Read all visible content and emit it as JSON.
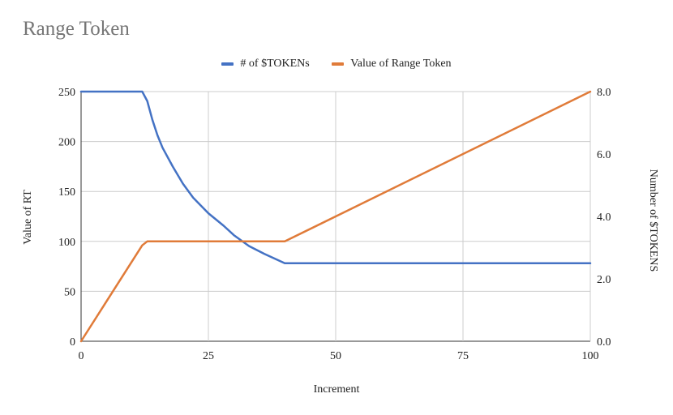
{
  "chart_data": {
    "type": "line",
    "title": "Range Token",
    "xlabel": "Increment",
    "ylabel": "Value of RT",
    "y2label": "Number of $TOKENS",
    "xlim": [
      0,
      100
    ],
    "ylim": [
      0,
      250
    ],
    "y2lim": [
      0,
      8
    ],
    "x_ticks": [
      "0",
      "25",
      "50",
      "75",
      "100"
    ],
    "y_ticks": [
      "0",
      "50",
      "100",
      "150",
      "200",
      "250"
    ],
    "y2_ticks": [
      "0.0",
      "2.0",
      "4.0",
      "6.0",
      "8.0"
    ],
    "grid": true,
    "legend_position": "top",
    "series": [
      {
        "name": "# of $TOKENs",
        "axis": "right",
        "color": "#4472c4",
        "x": [
          0,
          12,
          13,
          14,
          15,
          16,
          18,
          20,
          22,
          25,
          28,
          30,
          33,
          36,
          40,
          100
        ],
        "y": [
          8.0,
          8.0,
          7.7,
          7.1,
          6.6,
          6.2,
          5.6,
          5.05,
          4.6,
          4.1,
          3.7,
          3.4,
          3.05,
          2.8,
          2.5,
          2.5
        ]
      },
      {
        "name": "Value of Range Token",
        "axis": "left",
        "color": "#e07b39",
        "x": [
          0,
          12,
          13,
          40,
          100
        ],
        "y": [
          0,
          96,
          100,
          100,
          250
        ]
      }
    ]
  }
}
